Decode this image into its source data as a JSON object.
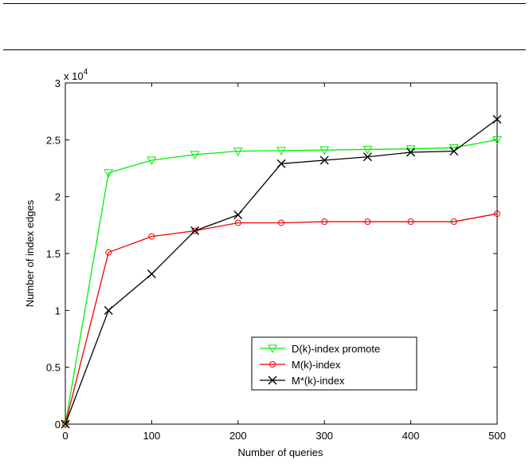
{
  "chart_data": {
    "type": "line",
    "title": "",
    "xlabel": "Number of queries",
    "ylabel": "Number of index edges",
    "y_multiplier": "x 10",
    "y_multiplier_exponent": "4",
    "xlim": [
      0,
      500
    ],
    "ylim": [
      0,
      3
    ],
    "x_ticks": [
      "0",
      "100",
      "200",
      "300",
      "400",
      "500"
    ],
    "y_ticks": [
      "0",
      "0.5",
      "1",
      "1.5",
      "2",
      "2.5",
      "3"
    ],
    "grid": false,
    "legend_position": "lower-right",
    "x": [
      0,
      50,
      100,
      150,
      200,
      250,
      300,
      350,
      400,
      450,
      500
    ],
    "series": [
      {
        "name": "D(k)-index promote",
        "color": "#00ee00",
        "marker": "triangle-down",
        "values": [
          0.0,
          2.21,
          2.32,
          2.37,
          2.4,
          2.405,
          2.41,
          2.415,
          2.42,
          2.43,
          2.5
        ]
      },
      {
        "name": "M(k)-index",
        "color": "#ee0000",
        "marker": "circle",
        "values": [
          0.0,
          1.51,
          1.65,
          1.7,
          1.77,
          1.77,
          1.78,
          1.78,
          1.78,
          1.78,
          1.85
        ]
      },
      {
        "name": "M*(k)-index",
        "color": "#000000",
        "marker": "x",
        "values": [
          0.0,
          1.0,
          1.32,
          1.7,
          1.84,
          2.29,
          2.32,
          2.35,
          2.39,
          2.4,
          2.68
        ]
      }
    ]
  }
}
